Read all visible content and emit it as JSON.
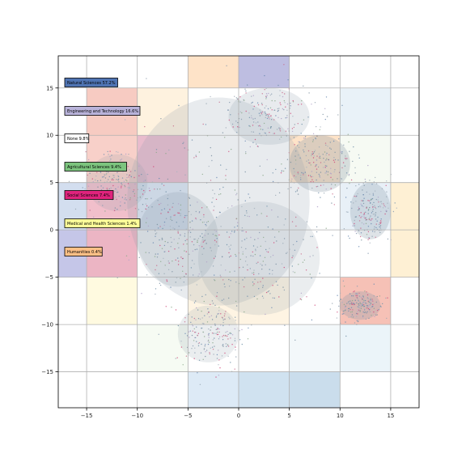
{
  "chart_data": {
    "type": "scatter",
    "title": "",
    "xlabel": "",
    "ylabel": "",
    "xlim": [
      -17.8,
      17.8
    ],
    "ylim": [
      -18.8,
      18.4
    ],
    "xticks": [
      -15,
      -10,
      -5,
      0,
      5,
      10,
      15
    ],
    "yticks": [
      -15,
      -10,
      -5,
      0,
      5,
      10,
      15
    ],
    "xtick_labels": [
      "−15",
      "−10",
      "−5",
      "0",
      "5",
      "10",
      "15"
    ],
    "ytick_labels": [
      "−15",
      "−10",
      "−5",
      "0",
      "5",
      "10",
      "15"
    ],
    "grid": true,
    "legend_placement": "left",
    "categories": [
      {
        "label": "Natural Sciences 57.2%",
        "share": 57.2,
        "color": "#4f74b3"
      },
      {
        "label": "Engineering and Technology 16.6%",
        "share": 16.6,
        "color": "#b9b3da"
      },
      {
        "label": "None 9.8%",
        "share": 9.8,
        "color": "#ffffff"
      },
      {
        "label": "Agricultural Sciences 9.4%",
        "share": 9.4,
        "color": "#7cc47e"
      },
      {
        "label": "Social Sciences 7.4%",
        "share": 7.4,
        "color": "#e0237d"
      },
      {
        "label": "Medical and Health Sciences 1.4%",
        "share": 1.4,
        "color": "#ffff99"
      },
      {
        "label": "Humanities 0.4%",
        "share": 0.4,
        "color": "#fdc086"
      }
    ],
    "cells": [
      {
        "x": [
          -5,
          0
        ],
        "y": [
          15,
          18.4
        ],
        "color": "#fdc086",
        "opacity": 0.45
      },
      {
        "x": [
          0,
          5
        ],
        "y": [
          15,
          18.4
        ],
        "color": "#8888c8",
        "opacity": 0.55
      },
      {
        "x": [
          -15,
          -10
        ],
        "y": [
          10,
          15
        ],
        "color": "#f1a08f",
        "opacity": 0.55
      },
      {
        "x": [
          -10,
          -5
        ],
        "y": [
          10,
          15
        ],
        "color": "#fdd9a3",
        "opacity": 0.35
      },
      {
        "x": [
          10,
          15
        ],
        "y": [
          10,
          15
        ],
        "color": "#cfe3ef",
        "opacity": 0.45
      },
      {
        "x": [
          -15,
          -10
        ],
        "y": [
          5,
          10
        ],
        "color": "#f3b1a5",
        "opacity": 0.6
      },
      {
        "x": [
          -10,
          -5
        ],
        "y": [
          5,
          10
        ],
        "color": "#c04070",
        "opacity": 0.35
      },
      {
        "x": [
          5,
          10
        ],
        "y": [
          5,
          10
        ],
        "color": "#fdc086",
        "opacity": 0.45
      },
      {
        "x": [
          10,
          15
        ],
        "y": [
          5,
          10
        ],
        "color": "#e8f2e0",
        "opacity": 0.4
      },
      {
        "x": [
          -17.8,
          -15
        ],
        "y": [
          0,
          5
        ],
        "color": "#c0d0e8",
        "opacity": 0.7
      },
      {
        "x": [
          -15,
          -10
        ],
        "y": [
          0,
          5
        ],
        "color": "#e58aa0",
        "opacity": 0.55
      },
      {
        "x": [
          -10,
          -5
        ],
        "y": [
          0,
          5
        ],
        "color": "#bcd0e8",
        "opacity": 0.5
      },
      {
        "x": [
          10,
          15
        ],
        "y": [
          0,
          5
        ],
        "color": "#d8e6f2",
        "opacity": 0.6
      },
      {
        "x": [
          15,
          17.8
        ],
        "y": [
          -5,
          5
        ],
        "color": "#fde6b8",
        "opacity": 0.6
      },
      {
        "x": [
          -17.8,
          -15
        ],
        "y": [
          -5,
          0
        ],
        "color": "#9fa0d8",
        "opacity": 0.6
      },
      {
        "x": [
          -15,
          -10
        ],
        "y": [
          -5,
          0
        ],
        "color": "#d96b8a",
        "opacity": 0.5
      },
      {
        "x": [
          -15,
          -10
        ],
        "y": [
          -10,
          -5
        ],
        "color": "#fff7cc",
        "opacity": 0.6
      },
      {
        "x": [
          -5,
          5
        ],
        "y": [
          -10,
          -5
        ],
        "color": "#fde0b0",
        "opacity": 0.35
      },
      {
        "x": [
          10,
          15
        ],
        "y": [
          -10,
          -5
        ],
        "color": "#f1a08f",
        "opacity": 0.65
      },
      {
        "x": [
          -10,
          -5
        ],
        "y": [
          -15,
          -10
        ],
        "color": "#e8f4e0",
        "opacity": 0.4
      },
      {
        "x": [
          5,
          10
        ],
        "y": [
          -15,
          -10
        ],
        "color": "#e8f2f6",
        "opacity": 0.5
      },
      {
        "x": [
          10,
          15
        ],
        "y": [
          -15,
          -10
        ],
        "color": "#d8eaf4",
        "opacity": 0.5
      },
      {
        "x": [
          -5,
          0
        ],
        "y": [
          -18.8,
          -15
        ],
        "color": "#c7dcf0",
        "opacity": 0.6
      },
      {
        "x": [
          0,
          5
        ],
        "y": [
          -18.8,
          -15
        ],
        "color": "#bcd6ea",
        "opacity": 0.7
      },
      {
        "x": [
          5,
          10
        ],
        "y": [
          -18.8,
          -15
        ],
        "color": "#b8d2e6",
        "opacity": 0.75
      }
    ],
    "point_palette": [
      "#6f8fa8",
      "#8a9bb0",
      "#7a8fa0",
      "#9aa8b4",
      "#c86a8a",
      "#d04a7a",
      "#8aa88a",
      "#b0a0c8",
      "#a8b4c0",
      "#6a8ab0"
    ]
  }
}
